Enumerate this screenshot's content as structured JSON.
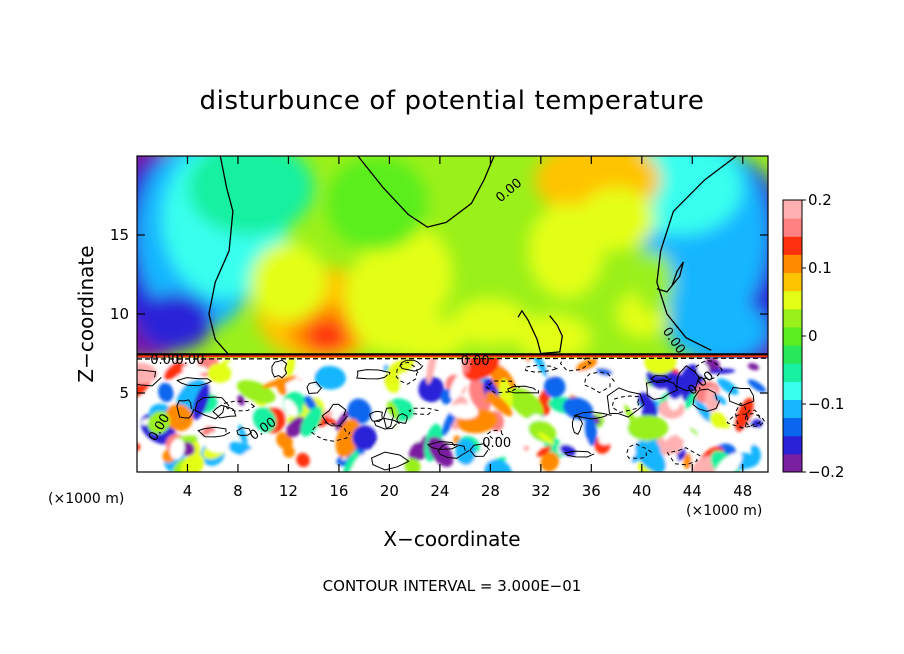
{
  "chart_data": {
    "type": "heatmap",
    "title": "disturbunce of potential temperature",
    "xlabel": "X−coordinate",
    "ylabel": "Z−coordinate",
    "x_unit_left": "(×1000 m)",
    "x_unit_right": "(×1000 m)",
    "footer": "CONTOUR INTERVAL = 3.000E−01",
    "xlim": [
      0,
      50
    ],
    "ylim": [
      0,
      20
    ],
    "x_ticks": [
      "4",
      "8",
      "12",
      "16",
      "20",
      "24",
      "28",
      "32",
      "36",
      "40",
      "44",
      "48"
    ],
    "y_ticks": [
      "5",
      "10",
      "15"
    ],
    "colorbar": {
      "range": [
        -0.2,
        0.2
      ],
      "tick_labels": [
        "0.2",
        "0.1",
        "0",
        "−0.1",
        "−0.2"
      ],
      "tick_values": [
        0.2,
        0.1,
        0,
        -0.1,
        -0.2
      ],
      "colors": [
        "#7a1fa0",
        "#2a22d8",
        "#0a66ee",
        "#18b6ff",
        "#38ffee",
        "#16f0a0",
        "#28e85a",
        "#5aee1e",
        "#9af01a",
        "#e4ff16",
        "#ffc400",
        "#ff8a00",
        "#ff3010",
        "#ff8080",
        "#ffb0b0"
      ]
    },
    "contour_labels": [
      "0.00",
      "0.00",
      "0.00",
      "0.00",
      "0.00",
      "0.00",
      "0.00",
      "0.00",
      "0.00"
    ],
    "contour_interval": 0.3
  }
}
